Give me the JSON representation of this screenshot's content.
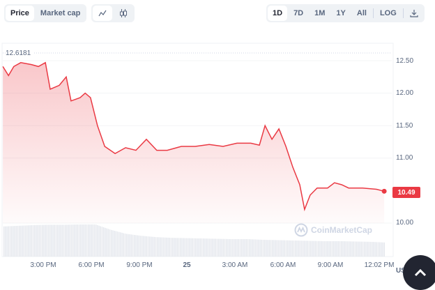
{
  "toolbar": {
    "tabs": [
      {
        "label": "Price",
        "active": true
      },
      {
        "label": "Market cap",
        "active": false
      }
    ],
    "chart_types": [
      {
        "icon": "line-chart-icon",
        "active": true
      },
      {
        "icon": "candlestick-icon",
        "active": false
      }
    ],
    "ranges": [
      "1D",
      "7D",
      "1M",
      "1Y",
      "All"
    ],
    "active_range": "1D",
    "log_label": "LOG",
    "download_icon": "download-icon"
  },
  "chart_data": {
    "type": "line",
    "y_ticks": [
      "12.50",
      "12.00",
      "11.50",
      "11.00",
      "10.00"
    ],
    "ylim": [
      9.7,
      12.75
    ],
    "x_ticks": [
      "3:00 PM",
      "6:00 PM",
      "9:00 PM",
      "25",
      "3:00 AM",
      "6:00 AM",
      "9:00 AM",
      "12:02 PM"
    ],
    "high_label": "12.6181",
    "last_price": "10.49",
    "currency": "USD",
    "line_color": "#ea3943",
    "points": [
      [
        "24 12:29",
        12.41
      ],
      [
        "24 12:50",
        12.27
      ],
      [
        "24 13:10",
        12.41
      ],
      [
        "24 13:36",
        12.47
      ],
      [
        "24 14:16",
        12.44
      ],
      [
        "24 14:42",
        12.41
      ],
      [
        "24 15:08",
        12.47
      ],
      [
        "24 15:26",
        12.06
      ],
      [
        "24 16:00",
        12.12
      ],
      [
        "24 16:26",
        12.25
      ],
      [
        "24 16:44",
        11.88
      ],
      [
        "24 17:18",
        11.93
      ],
      [
        "24 17:37",
        12.0
      ],
      [
        "24 17:57",
        11.93
      ],
      [
        "24 18:23",
        11.5
      ],
      [
        "24 18:50",
        11.18
      ],
      [
        "24 19:29",
        11.07
      ],
      [
        "24 20:08",
        11.16
      ],
      [
        "24 20:47",
        11.12
      ],
      [
        "24 21:26",
        11.29
      ],
      [
        "24 22:05",
        11.12
      ],
      [
        "24 22:44",
        11.12
      ],
      [
        "24 23:37",
        11.18
      ],
      [
        "25 00:29",
        11.18
      ],
      [
        "25 01:21",
        11.21
      ],
      [
        "25 02:13",
        11.18
      ],
      [
        "25 03:05",
        11.23
      ],
      [
        "25 03:57",
        11.23
      ],
      [
        "25 04:29",
        11.2
      ],
      [
        "25 04:50",
        11.5
      ],
      [
        "25 05:16",
        11.29
      ],
      [
        "25 05:42",
        11.45
      ],
      [
        "25 06:08",
        11.18
      ],
      [
        "25 06:34",
        10.86
      ],
      [
        "25 07:00",
        10.59
      ],
      [
        "25 07:18",
        10.21
      ],
      [
        "25 07:39",
        10.43
      ],
      [
        "25 08:05",
        10.54
      ],
      [
        "25 08:44",
        10.54
      ],
      [
        "25 09:10",
        10.62
      ],
      [
        "25 09:37",
        10.59
      ],
      [
        "25 10:03",
        10.54
      ],
      [
        "25 10:55",
        10.54
      ],
      [
        "25 11:47",
        10.52
      ],
      [
        "25 12:16",
        10.49
      ]
    ],
    "volume_relative": [
      0.9,
      0.92,
      0.94,
      0.95,
      0.95,
      0.96,
      0.96,
      0.8,
      0.68,
      0.62,
      0.58,
      0.56,
      0.55,
      0.54,
      0.53,
      0.52,
      0.52,
      0.5,
      0.49,
      0.48,
      0.47,
      0.46,
      0.46,
      0.45,
      0.44,
      0.42
    ]
  },
  "watermark": "CoinMarketCap"
}
